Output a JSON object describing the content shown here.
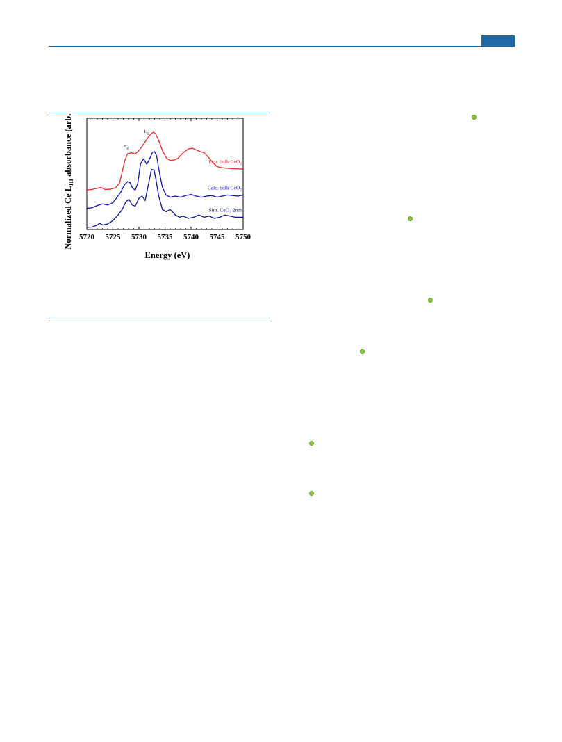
{
  "colors": {
    "accent": "#1f6aa5",
    "rule": "#2b78b4",
    "marker": "#8cc63f"
  },
  "icons": {
    "marker": "green-dot-icon"
  },
  "chart_data": {
    "type": "line",
    "title": "",
    "xlabel": "Energy (eV)",
    "ylabel_parts": {
      "pre": "Normalized Ce L",
      "sub": "III",
      "post": " absorbance (arb.u.)"
    },
    "xlim": [
      5720,
      5750
    ],
    "ylim": [
      0,
      1.0
    ],
    "xticks": [
      "5720",
      "5725",
      "5730",
      "5735",
      "5740",
      "5745",
      "5750"
    ],
    "grid": false,
    "peak_labels": [
      {
        "base": "e",
        "sub": "g",
        "x": 5727.6,
        "y": 0.74
      },
      {
        "base": "t",
        "sub": "2g",
        "x": 5731.5,
        "y": 0.87
      }
    ],
    "series": [
      {
        "label_pre": "Exp. bulk CeO",
        "label_sub": "2",
        "label_post": "",
        "color": "#e8262d",
        "x": [
          5720,
          5721,
          5722,
          5722.7,
          5723.5,
          5724.5,
          5725.5,
          5726.3,
          5726.8,
          5727.3,
          5727.8,
          5728.5,
          5729.3,
          5730,
          5730.8,
          5731.5,
          5732.3,
          5732.8,
          5733.2,
          5733.8,
          5734.5,
          5735.3,
          5736,
          5736.8,
          5737.5,
          5738.5,
          5739.5,
          5740.3,
          5741,
          5741.8,
          5742.5,
          5743.5,
          5744.2,
          5745,
          5746,
          5747,
          5748,
          5749,
          5750
        ],
        "y": [
          0.355,
          0.36,
          0.37,
          0.378,
          0.36,
          0.362,
          0.375,
          0.42,
          0.52,
          0.62,
          0.68,
          0.69,
          0.68,
          0.71,
          0.76,
          0.81,
          0.86,
          0.875,
          0.86,
          0.8,
          0.71,
          0.64,
          0.62,
          0.625,
          0.64,
          0.69,
          0.725,
          0.73,
          0.715,
          0.7,
          0.69,
          0.64,
          0.6,
          0.565,
          0.555,
          0.55,
          0.548,
          0.545,
          0.543
        ]
      },
      {
        "label_pre": "Calc. bulk CeO",
        "label_sub": "2",
        "label_post": "",
        "color": "#0d13b0",
        "x": [
          5720,
          5721,
          5722,
          5723,
          5724,
          5725,
          5725.8,
          5726.5,
          5727.2,
          5727.8,
          5728.3,
          5728.8,
          5729.3,
          5729.8,
          5730.3,
          5730.9,
          5731.5,
          5732.1,
          5732.6,
          5733,
          5733.4,
          5733.9,
          5734.5,
          5735.2,
          5736,
          5737,
          5738,
          5739,
          5740,
          5741,
          5742,
          5743,
          5744,
          5745,
          5746,
          5747,
          5748,
          5749,
          5750
        ],
        "y": [
          0.19,
          0.195,
          0.215,
          0.23,
          0.22,
          0.24,
          0.29,
          0.335,
          0.4,
          0.43,
          0.42,
          0.37,
          0.355,
          0.42,
          0.59,
          0.635,
          0.585,
          0.64,
          0.695,
          0.7,
          0.66,
          0.52,
          0.38,
          0.31,
          0.29,
          0.3,
          0.29,
          0.305,
          0.315,
          0.3,
          0.29,
          0.3,
          0.305,
          0.29,
          0.3,
          0.31,
          0.305,
          0.3,
          0.31
        ]
      },
      {
        "label_pre": "Sim. CeO",
        "label_sub": "2",
        "label_post": " 2nm",
        "color": "#0a1494",
        "x": [
          5720,
          5721,
          5722,
          5722.5,
          5723,
          5724,
          5725,
          5726,
          5726.8,
          5727.5,
          5728.1,
          5728.7,
          5729.3,
          5730,
          5730.6,
          5731.2,
          5731.8,
          5732.4,
          5732.9,
          5733.3,
          5733.8,
          5734.5,
          5735.2,
          5736,
          5737,
          5737.8,
          5738.5,
          5739.5,
          5740.5,
          5741.5,
          5742.5,
          5743.5,
          5744.5,
          5745.5,
          5746.5,
          5747.5,
          5748.5,
          5749.3,
          5750
        ],
        "y": [
          0.02,
          0.022,
          0.04,
          0.055,
          0.04,
          0.05,
          0.08,
          0.13,
          0.18,
          0.25,
          0.27,
          0.22,
          0.21,
          0.28,
          0.3,
          0.26,
          0.4,
          0.54,
          0.535,
          0.44,
          0.3,
          0.18,
          0.16,
          0.18,
          0.13,
          0.11,
          0.12,
          0.1,
          0.11,
          0.13,
          0.11,
          0.12,
          0.1,
          0.11,
          0.13,
          0.12,
          0.11,
          0.11,
          0.11
        ]
      }
    ]
  }
}
